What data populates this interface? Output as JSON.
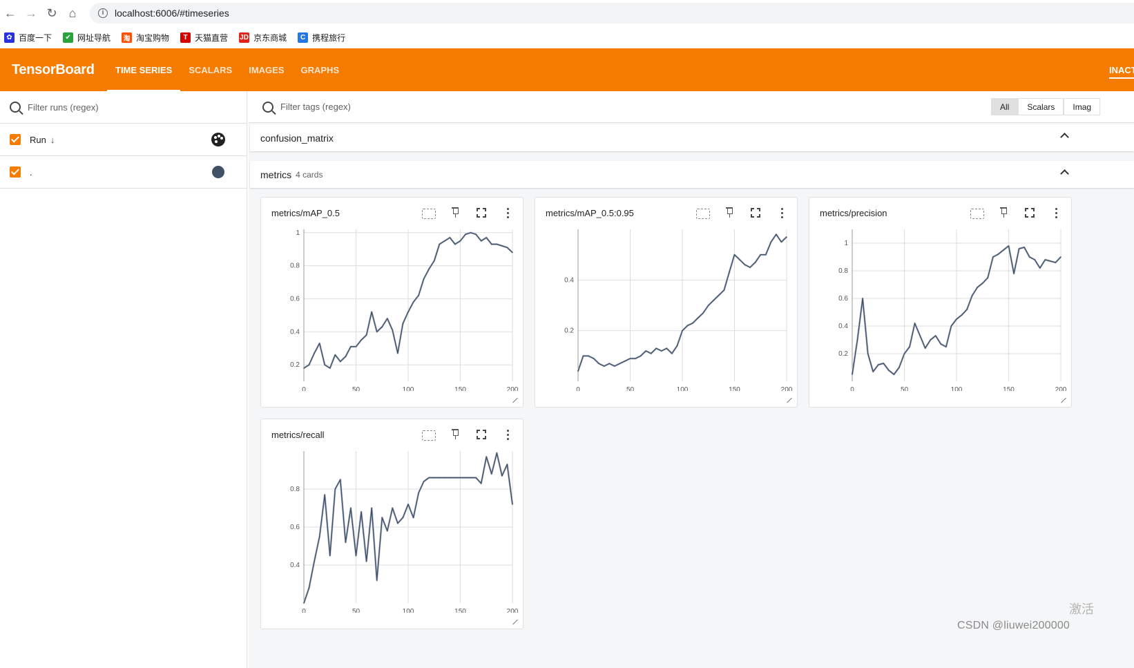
{
  "browser": {
    "url": "localhost:6006/#timeseries",
    "bookmarks": [
      {
        "label": "百度一下",
        "color": "#2932e1",
        "glyph": "✿"
      },
      {
        "label": "网址导航",
        "color": "#2aa33a",
        "glyph": "✔"
      },
      {
        "label": "淘宝购物",
        "color": "#ff5000",
        "glyph": "淘"
      },
      {
        "label": "天猫直营",
        "color": "#d40000",
        "glyph": "T"
      },
      {
        "label": "京东商城",
        "color": "#e1251b",
        "glyph": "JD"
      },
      {
        "label": "携程旅行",
        "color": "#2577e3",
        "glyph": "C"
      }
    ]
  },
  "header": {
    "brand": "TensorBoard",
    "tabs": [
      "TIME SERIES",
      "SCALARS",
      "IMAGES",
      "GRAPHS"
    ],
    "active_tab": "TIME SERIES",
    "inactive_label": "INACT",
    "color": "#f57c00"
  },
  "sidebar": {
    "filter_placeholder": "Filter runs (regex)",
    "header_label": "Run",
    "sort_icon": "↓",
    "runs": [
      {
        "name": ".",
        "color": "#425066",
        "checked": true
      }
    ]
  },
  "main": {
    "tag_filter_placeholder": "Filter tags (regex)",
    "type_toggle": [
      "All",
      "Scalars",
      "Imag"
    ],
    "groups": [
      {
        "name": "confusion_matrix",
        "count": ""
      },
      {
        "name": "metrics",
        "count": "4 cards"
      }
    ]
  },
  "chart_data": [
    {
      "type": "line",
      "title": "metrics/mAP_0.5",
      "xlim": [
        0,
        200
      ],
      "ylim": [
        0.1,
        1.02
      ],
      "xticks": [
        0,
        50,
        100,
        150,
        200
      ],
      "yticks": [
        0.2,
        0.4,
        0.6,
        0.8,
        1
      ],
      "x": [
        0,
        5,
        10,
        15,
        20,
        25,
        30,
        35,
        40,
        45,
        50,
        55,
        60,
        65,
        70,
        75,
        80,
        85,
        90,
        95,
        100,
        105,
        110,
        115,
        120,
        125,
        130,
        135,
        140,
        145,
        150,
        155,
        160,
        165,
        170,
        175,
        180,
        185,
        190,
        195,
        200
      ],
      "series": [
        {
          "color": "#425066",
          "values": [
            0.18,
            0.2,
            0.27,
            0.33,
            0.2,
            0.18,
            0.26,
            0.22,
            0.25,
            0.31,
            0.31,
            0.35,
            0.38,
            0.52,
            0.4,
            0.43,
            0.48,
            0.41,
            0.27,
            0.45,
            0.52,
            0.58,
            0.62,
            0.72,
            0.78,
            0.83,
            0.93,
            0.95,
            0.97,
            0.93,
            0.95,
            0.99,
            1.0,
            0.99,
            0.95,
            0.97,
            0.93,
            0.93,
            0.92,
            0.91,
            0.88
          ]
        }
      ]
    },
    {
      "type": "line",
      "title": "metrics/mAP_0.5:0.95",
      "xlim": [
        0,
        200
      ],
      "ylim": [
        0.0,
        0.6
      ],
      "xticks": [
        0,
        50,
        100,
        150,
        200
      ],
      "yticks": [
        0.2,
        0.4
      ],
      "x": [
        0,
        5,
        10,
        15,
        20,
        25,
        30,
        35,
        40,
        45,
        50,
        55,
        60,
        65,
        70,
        75,
        80,
        85,
        90,
        95,
        100,
        105,
        110,
        115,
        120,
        125,
        130,
        135,
        140,
        145,
        150,
        155,
        160,
        165,
        170,
        175,
        180,
        185,
        190,
        195,
        200
      ],
      "series": [
        {
          "color": "#425066",
          "values": [
            0.04,
            0.1,
            0.1,
            0.09,
            0.07,
            0.06,
            0.07,
            0.06,
            0.07,
            0.08,
            0.09,
            0.09,
            0.1,
            0.12,
            0.11,
            0.13,
            0.12,
            0.13,
            0.11,
            0.14,
            0.2,
            0.22,
            0.23,
            0.25,
            0.27,
            0.3,
            0.32,
            0.34,
            0.36,
            0.43,
            0.5,
            0.48,
            0.46,
            0.45,
            0.47,
            0.5,
            0.5,
            0.55,
            0.58,
            0.55,
            0.57
          ]
        }
      ]
    },
    {
      "type": "line",
      "title": "metrics/precision",
      "xlim": [
        0,
        200
      ],
      "ylim": [
        0.0,
        1.1
      ],
      "xticks": [
        0,
        50,
        100,
        150,
        200
      ],
      "yticks": [
        0.2,
        0.4,
        0.6,
        0.8,
        1
      ],
      "x": [
        0,
        5,
        10,
        15,
        20,
        25,
        30,
        35,
        40,
        45,
        50,
        55,
        60,
        65,
        70,
        75,
        80,
        85,
        90,
        95,
        100,
        105,
        110,
        115,
        120,
        125,
        130,
        135,
        140,
        145,
        150,
        155,
        160,
        165,
        170,
        175,
        180,
        185,
        190,
        195,
        200
      ],
      "series": [
        {
          "color": "#425066",
          "values": [
            0.05,
            0.3,
            0.6,
            0.2,
            0.07,
            0.12,
            0.13,
            0.08,
            0.05,
            0.1,
            0.2,
            0.25,
            0.42,
            0.33,
            0.24,
            0.3,
            0.33,
            0.27,
            0.25,
            0.4,
            0.45,
            0.48,
            0.52,
            0.62,
            0.68,
            0.71,
            0.75,
            0.9,
            0.92,
            0.95,
            0.98,
            0.78,
            0.96,
            0.97,
            0.9,
            0.88,
            0.82,
            0.88,
            0.87,
            0.86,
            0.9
          ]
        }
      ]
    },
    {
      "type": "line",
      "title": "metrics/recall",
      "xlim": [
        0,
        200
      ],
      "ylim": [
        0.2,
        1.0
      ],
      "xticks": [
        0,
        50,
        100,
        150,
        200
      ],
      "yticks": [
        0.4,
        0.6,
        0.8
      ],
      "x": [
        0,
        5,
        10,
        15,
        20,
        25,
        30,
        35,
        40,
        45,
        50,
        55,
        60,
        65,
        70,
        75,
        80,
        85,
        90,
        95,
        100,
        105,
        110,
        115,
        120,
        125,
        130,
        135,
        140,
        145,
        150,
        155,
        160,
        165,
        170,
        175,
        180,
        185,
        190,
        195,
        200
      ],
      "series": [
        {
          "color": "#425066",
          "values": [
            0.2,
            0.28,
            0.42,
            0.55,
            0.77,
            0.45,
            0.8,
            0.85,
            0.52,
            0.7,
            0.45,
            0.68,
            0.42,
            0.7,
            0.32,
            0.65,
            0.58,
            0.7,
            0.62,
            0.65,
            0.72,
            0.65,
            0.78,
            0.84,
            0.86,
            0.86,
            0.86,
            0.86,
            0.86,
            0.86,
            0.86,
            0.86,
            0.86,
            0.86,
            0.83,
            0.97,
            0.88,
            0.99,
            0.87,
            0.93,
            0.72
          ]
        }
      ]
    }
  ],
  "watermark": "CSDN @liuwei200000",
  "watermark_side": "激活"
}
